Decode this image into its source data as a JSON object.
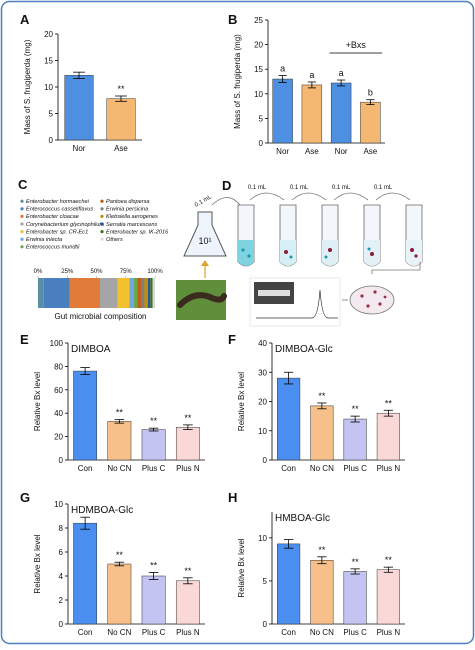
{
  "chart_data": [
    {
      "type": "bar",
      "panel": "A",
      "ylabel": "Mass of S. frugiperda (mg)",
      "categories": [
        "Nor",
        "Ase"
      ],
      "values": [
        12.2,
        7.8
      ],
      "errors": [
        0.6,
        0.5
      ],
      "colors": [
        "#4d8fe0",
        "#f5b873"
      ],
      "annotations": [
        null,
        "**"
      ],
      "ylim": [
        0,
        20
      ],
      "yticks": [
        0,
        5,
        10,
        15,
        20
      ]
    },
    {
      "type": "bar",
      "panel": "B",
      "ylabel": "Mass of S. frugiperda (mg)",
      "categories": [
        "Nor",
        "Ase",
        "Nor",
        "Ase"
      ],
      "values": [
        13,
        11.8,
        12.2,
        8.3
      ],
      "errors": [
        0.7,
        0.6,
        0.6,
        0.5
      ],
      "colors": [
        "#4d8fe0",
        "#f5b873",
        "#4d8fe0",
        "#f5b873"
      ],
      "annotations": [
        "a",
        "a",
        "a",
        "b"
      ],
      "group_label": "+Bxs",
      "ylim": [
        0,
        25
      ],
      "yticks": [
        0,
        5,
        10,
        15,
        20,
        25
      ]
    },
    {
      "type": "stacked-bar",
      "panel": "C",
      "xlabel": "Gut microbial composition",
      "xlim": [
        0,
        100
      ],
      "xticks": [
        {
          "value": 0,
          "label": "0%"
        },
        {
          "value": 25,
          "label": "25%"
        },
        {
          "value": 50,
          "label": "50%"
        },
        {
          "value": 75,
          "label": "75%"
        },
        {
          "value": 100,
          "label": "100%"
        }
      ],
      "series": [
        {
          "name": "Enterobacter hormaechei",
          "color": "#5b8fa3",
          "values": [
            5
          ]
        },
        {
          "name": "Enterococcus casseliflavus",
          "color": "#4a7fc0",
          "values": [
            22
          ]
        },
        {
          "name": "Enterobacter cloacae",
          "color": "#e07b39",
          "values": [
            26
          ]
        },
        {
          "name": "Corynebacterium glycinophilum",
          "color": "#a5a5a5",
          "values": [
            15
          ]
        },
        {
          "name": "Enterobacter sp. CR-Ec1",
          "color": "#f2c12e",
          "values": [
            10
          ]
        },
        {
          "name": "Erwinia inlecta",
          "color": "#6fa8dc",
          "values": [
            4
          ]
        },
        {
          "name": "Enterococcus mundtii",
          "color": "#6aa84f",
          "values": [
            3
          ]
        },
        {
          "name": "Pantoea dispersa",
          "color": "#c55a11",
          "values": [
            3
          ]
        },
        {
          "name": "Erwinia persicina",
          "color": "#7f7f7f",
          "values": [
            3
          ]
        },
        {
          "name": "Klebsiella aerogenes",
          "color": "#bf9000",
          "values": [
            3
          ]
        },
        {
          "name": "Serratia marcescens",
          "color": "#2f5597",
          "values": [
            2
          ]
        },
        {
          "name": "Enterobacter sp. IK-2016",
          "color": "#38761d",
          "values": [
            2
          ]
        },
        {
          "name": "Others",
          "color": "#d9d9d9",
          "values": [
            2
          ]
        }
      ]
    },
    {
      "type": "bar",
      "panel": "E",
      "title": "DIMBOA",
      "ylabel": "Relative Bx level",
      "categories": [
        "Con",
        "No CN",
        "Plus C",
        "Plus N"
      ],
      "values": [
        76,
        33,
        26,
        28
      ],
      "errors": [
        3,
        1.5,
        1.2,
        2
      ],
      "colors": [
        "#4a8ff0",
        "#f7c08a",
        "#c4c4f2",
        "#fbd8d8"
      ],
      "annotations": [
        null,
        "**",
        "**",
        "**"
      ],
      "ylim": [
        0,
        100
      ],
      "yticks": [
        0,
        20,
        40,
        60,
        80,
        100
      ]
    },
    {
      "type": "bar",
      "panel": "F",
      "title": "DIMBOA-Glc",
      "ylabel": "Relative Bx level",
      "categories": [
        "Con",
        "No CN",
        "Plus C",
        "Plus N"
      ],
      "values": [
        28,
        18.5,
        14,
        16
      ],
      "errors": [
        2,
        1,
        1,
        1
      ],
      "colors": [
        "#4a8ff0",
        "#f7c08a",
        "#c4c4f2",
        "#fbd8d8"
      ],
      "annotations": [
        null,
        "**",
        "**",
        "**"
      ],
      "ylim": [
        0,
        40
      ],
      "yticks": [
        0,
        10,
        20,
        30,
        40
      ]
    },
    {
      "type": "bar",
      "panel": "G",
      "title": "HDMBOA-Glc",
      "ylabel": "Relative Bx level",
      "categories": [
        "Con",
        "No CN",
        "Plus C",
        "Plus N"
      ],
      "values": [
        8.4,
        5.0,
        4.0,
        3.6
      ],
      "errors": [
        0.5,
        0.15,
        0.3,
        0.25
      ],
      "colors": [
        "#4a8ff0",
        "#f7c08a",
        "#c4c4f2",
        "#fbd8d8"
      ],
      "annotations": [
        null,
        "**",
        "**",
        "**"
      ],
      "ylim": [
        0,
        10
      ],
      "yticks": [
        0,
        2,
        4,
        6,
        8,
        10
      ]
    },
    {
      "type": "bar",
      "panel": "H",
      "title": "HMBOA-Glc",
      "ylabel": "Relative Bx level",
      "categories": [
        "Con",
        "No CN",
        "Plus C",
        "Plus N"
      ],
      "values": [
        9.3,
        7.4,
        6.1,
        6.3
      ],
      "errors": [
        0.5,
        0.4,
        0.3,
        0.3
      ],
      "colors": [
        "#4a8ff0",
        "#f7c08a",
        "#c4c4f2",
        "#fbd8d8"
      ],
      "annotations": [
        null,
        "**",
        "**",
        "**"
      ],
      "ylim": [
        0,
        13
      ],
      "yticks": [
        0,
        5,
        10
      ]
    }
  ],
  "diagram": {
    "panel": "D",
    "dilution": "10¹",
    "transfer_labels": [
      "0.1 mL",
      "0.1 mL",
      "0.1 mL",
      "0.1 mL",
      "0.1 mL"
    ]
  }
}
